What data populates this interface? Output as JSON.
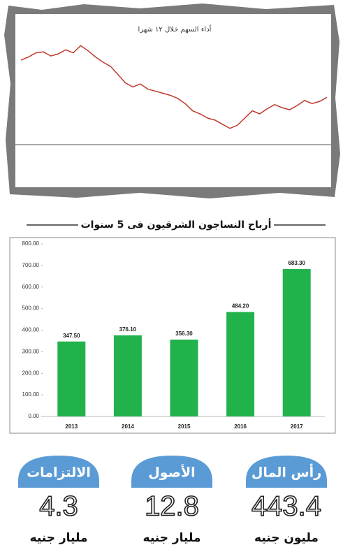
{
  "chart_data": [
    {
      "type": "line",
      "title": "أداء السهم خلال ١٢ شهرا",
      "color": "#c0392b",
      "values": [
        16.2,
        16.5,
        16.9,
        17.0,
        16.6,
        16.8,
        17.2,
        16.9,
        17.6,
        17.1,
        16.5,
        16.0,
        15.6,
        14.8,
        14.0,
        13.6,
        13.9,
        13.4,
        13.2,
        13.0,
        12.8,
        12.5,
        12.0,
        11.3,
        11.0,
        10.6,
        10.4,
        10.0,
        9.6,
        9.9,
        10.6,
        11.3,
        11.0,
        11.5,
        11.9,
        11.6,
        11.4,
        11.8,
        12.3,
        12.0,
        12.2,
        12.6
      ],
      "ylim": [
        8.5,
        18.5
      ]
    },
    {
      "type": "bar",
      "title": "أرباح النساجون الشرقيون فى 5 سنوات",
      "color": "#22b24c",
      "categories": [
        "2013",
        "2014",
        "2015",
        "2016",
        "2017"
      ],
      "values": [
        347.5,
        376.1,
        356.3,
        484.2,
        683.3
      ],
      "value_labels": [
        "347.50",
        "376.10",
        "356.30",
        "484.20",
        "683.30"
      ],
      "ylim": [
        0,
        800
      ],
      "yticks": [
        {
          "value": 0,
          "label": "0.00"
        },
        {
          "value": 100,
          "label": "100.00"
        },
        {
          "value": 200,
          "label": "200.00"
        },
        {
          "value": 300,
          "label": "300.00"
        },
        {
          "value": 400,
          "label": "400.00"
        },
        {
          "value": 500,
          "label": "500.00"
        },
        {
          "value": 600,
          "label": "600.00"
        },
        {
          "value": 700,
          "label": "700.00"
        },
        {
          "value": 800,
          "label": "800.00"
        }
      ]
    }
  ],
  "kpis": [
    {
      "label": "رأس المال",
      "value": 443.4,
      "unit": "مليون جنيه"
    },
    {
      "label": "الأصول",
      "value": 12.8,
      "unit": "مليار جنيه"
    },
    {
      "label": "الالتزامات",
      "value": 4.3,
      "unit": "مليار جنيه"
    }
  ]
}
